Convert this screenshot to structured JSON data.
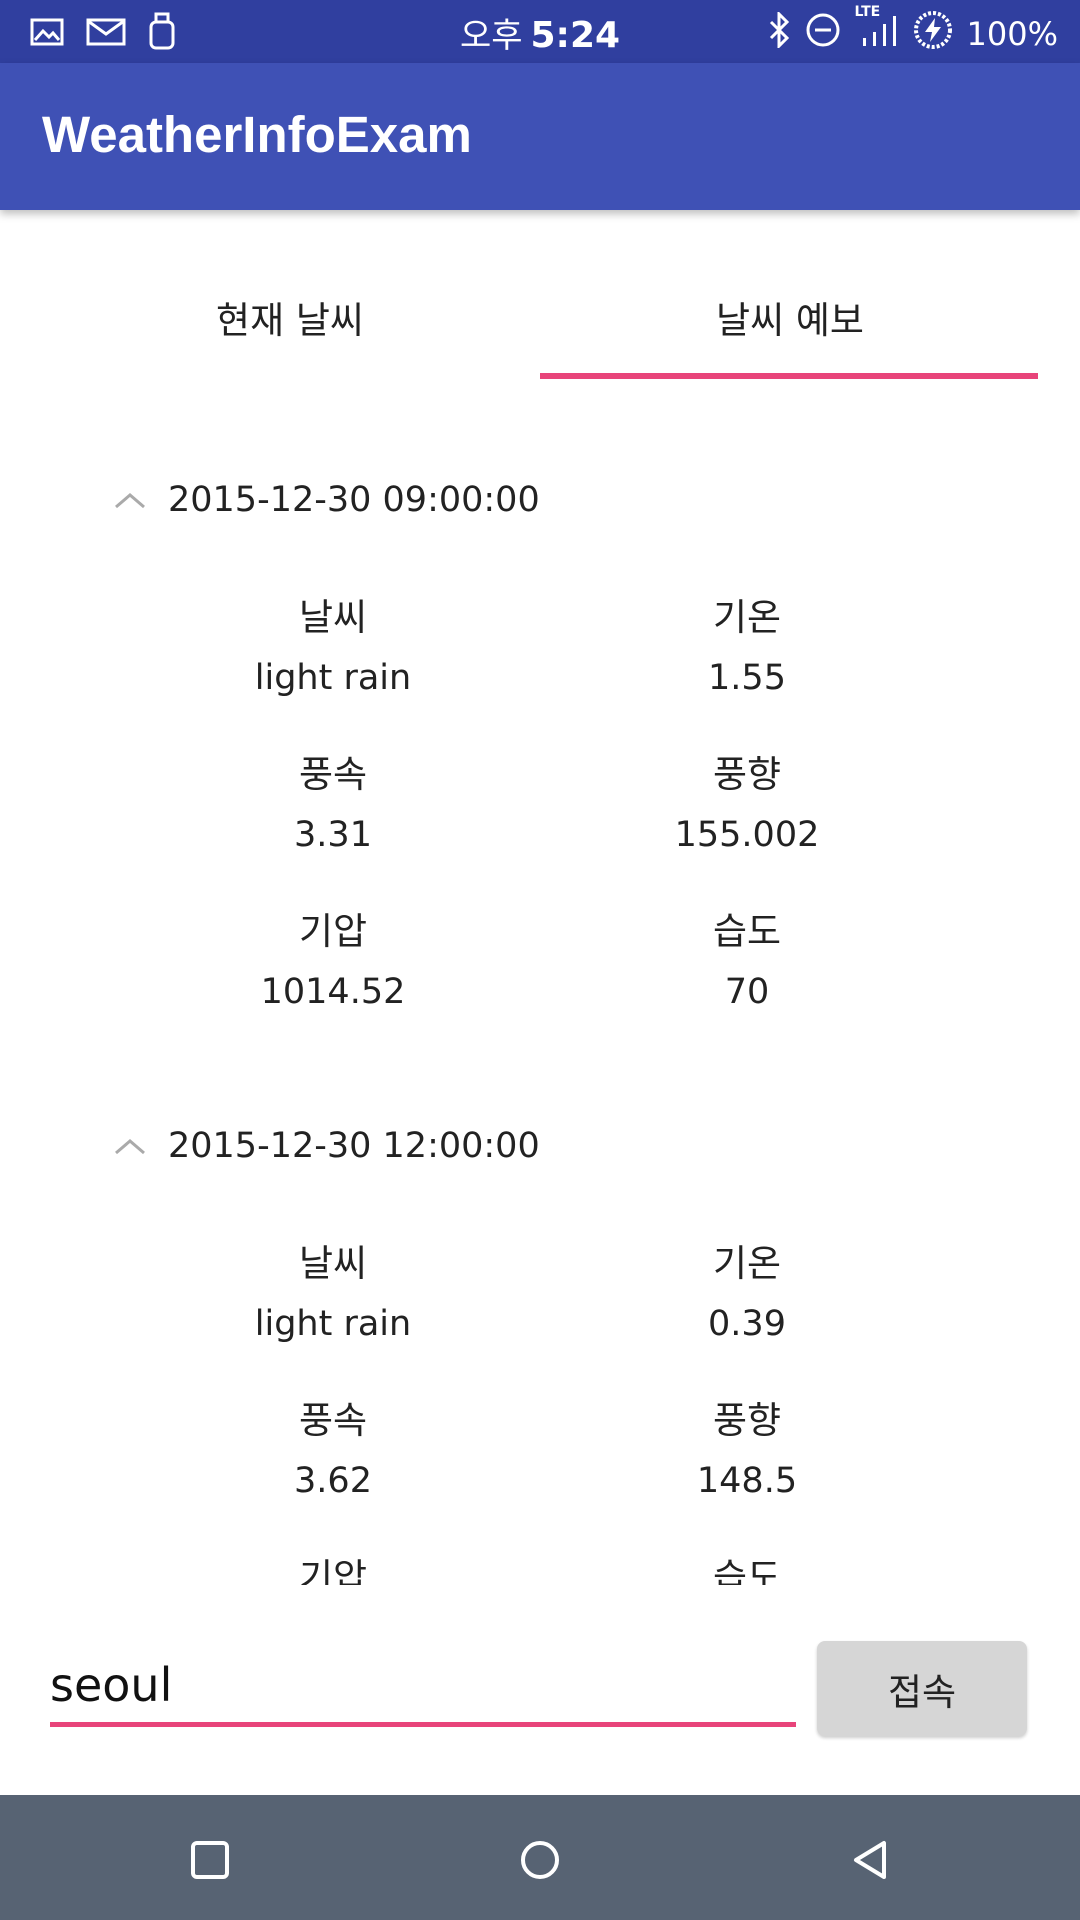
{
  "status_bar": {
    "ampm": "오후",
    "time": "5:24",
    "network": "LTE",
    "battery": "100%"
  },
  "app_bar": {
    "title": "WeatherInfoExam"
  },
  "tabs": [
    {
      "label": "현재 날씨",
      "selected": false
    },
    {
      "label": "날씨 예보",
      "selected": true
    }
  ],
  "forecasts": [
    {
      "datetime": "2015-12-30 09:00:00",
      "weather_label": "날씨",
      "weather": "light rain",
      "temp_label": "기온",
      "temp": "1.55",
      "wind_speed_label": "풍속",
      "wind_speed": "3.31",
      "wind_dir_label": "풍향",
      "wind_dir": "155.002",
      "pressure_label": "기압",
      "pressure": "1014.52",
      "humidity_label": "습도",
      "humidity": "70"
    },
    {
      "datetime": "2015-12-30 12:00:00",
      "weather_label": "날씨",
      "weather": "light rain",
      "temp_label": "기온",
      "temp": "0.39",
      "wind_speed_label": "풍속",
      "wind_speed": "3.62",
      "wind_dir_label": "풍향",
      "wind_dir": "148.5",
      "pressure_label": "기압",
      "humidity_label": "습도"
    }
  ],
  "search": {
    "value": "seoul",
    "button_label": "접속"
  },
  "colors": {
    "status_bar": "#303f9f",
    "app_bar": "#3f51b5",
    "accent": "#e8447a",
    "nav_bar": "#576373"
  }
}
